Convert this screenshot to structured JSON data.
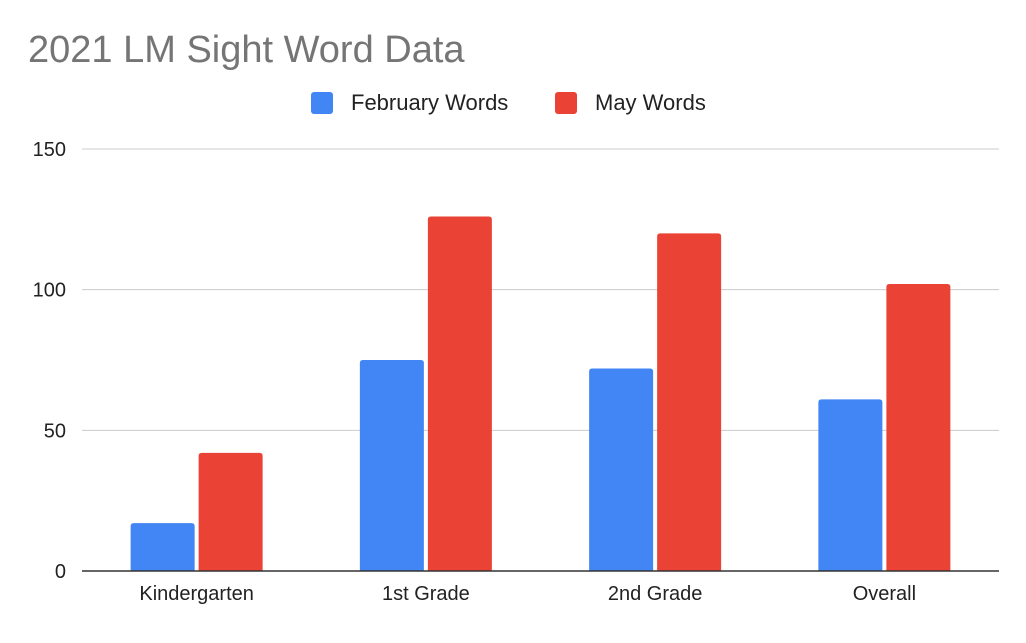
{
  "chart_data": {
    "type": "bar",
    "title": "2021 LM Sight Word Data",
    "xlabel": "",
    "ylabel": "",
    "categories": [
      "Kindergarten",
      "1st Grade",
      "2nd Grade",
      "Overall"
    ],
    "series": [
      {
        "name": "February Words",
        "color": "#4285f4",
        "values": [
          17,
          75,
          72,
          61
        ]
      },
      {
        "name": "May Words",
        "color": "#ea4335",
        "values": [
          42,
          126,
          120,
          102
        ]
      }
    ],
    "ylim": [
      0,
      150
    ],
    "yticks": [
      "0",
      "50",
      "100",
      "150"
    ],
    "grid": true,
    "legend_position": "top-center"
  }
}
